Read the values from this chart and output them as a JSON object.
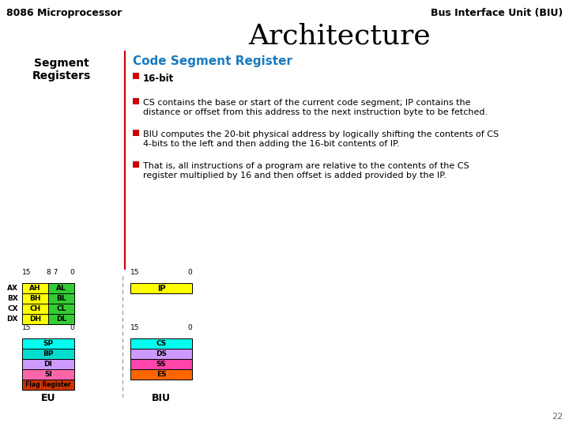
{
  "title_left": "8086 Microprocessor",
  "title_right": "Bus Interface Unit (BIU)",
  "title_main": "Architecture",
  "section_label": "Segment\nRegisters",
  "section_header": "Code Segment Register",
  "bullets": [
    "16-bit",
    "CS contains the base or start of the current code segment; IP contains the\ndistance or offset from this address to the next instruction byte to be fetched.",
    "BIU computes the 20-bit physical address by logically shifting the contents of CS\n4-bits to the left and then adding the 16-bit contents of IP.",
    "That is, all instructions of a program are relative to the contents of the CS\nregister multiplied by 16 and then offset is added provided by the IP."
  ],
  "bullet_color": "#cc0000",
  "header_color": "#1a7abf",
  "page_number": "22",
  "bg_color": "#ffffff",
  "eu_regs": [
    {
      "label": "AH",
      "color": "#ffff00"
    },
    {
      "label": "AL",
      "color": "#33cc33"
    },
    {
      "label": "BH",
      "color": "#ffff00"
    },
    {
      "label": "BL",
      "color": "#33cc33"
    },
    {
      "label": "CH",
      "color": "#ffff00"
    },
    {
      "label": "CL",
      "color": "#33cc33"
    },
    {
      "label": "DH",
      "color": "#ffff00"
    },
    {
      "label": "DL",
      "color": "#33cc33"
    }
  ],
  "eu_row_labels": [
    "AX",
    "BX",
    "CX",
    "DX"
  ],
  "eu_pointer_regs": [
    {
      "label": "SP",
      "color": "#00ffee"
    },
    {
      "label": "BP",
      "color": "#00ddcc"
    },
    {
      "label": "DI",
      "color": "#cc99ff"
    },
    {
      "label": "SI",
      "color": "#ff66aa"
    },
    {
      "label": "Flag Register",
      "color": "#cc3300"
    }
  ],
  "biu_ip_reg": {
    "label": "IP",
    "color": "#ffff00"
  },
  "biu_seg_regs": [
    {
      "label": "CS",
      "color": "#00ffee"
    },
    {
      "label": "DS",
      "color": "#cc99ff"
    },
    {
      "label": "SS",
      "color": "#ff44aa"
    },
    {
      "label": "ES",
      "color": "#ff6600"
    }
  ],
  "divider_line_color": "#cc0000",
  "dashed_line_color": "#999999"
}
